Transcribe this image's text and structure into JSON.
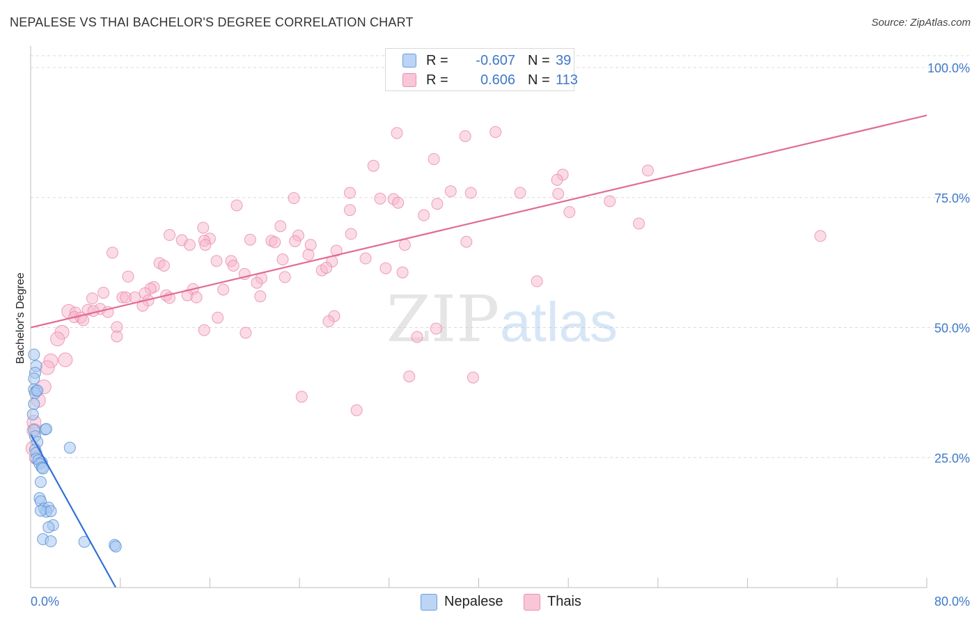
{
  "header": {
    "title": "NEPALESE VS THAI BACHELOR'S DEGREE CORRELATION CHART",
    "source": "Source: ZipAtlas.com"
  },
  "legend": {
    "r_label": "R =",
    "n_label": "N =",
    "rows": [
      {
        "name": "Nepalese",
        "r": "-0.607",
        "n": "39"
      },
      {
        "name": "Thais",
        "r": "0.606",
        "n": "113"
      }
    ]
  },
  "bottom_legend": {
    "nepalese": "Nepalese",
    "thais": "Thais"
  },
  "watermark": {
    "zip": "ZIP",
    "atlas": "atlas"
  },
  "colors": {
    "nepalese_fill": "#a9c8f0",
    "nepalese_stroke": "#5b8fd6",
    "nepalese_line": "#2f6fd6",
    "thais_fill": "#f7b8cd",
    "thais_stroke": "#e889a8",
    "thais_line": "#e26a98",
    "tick": "#3f78c8",
    "grid": "#d9d9d9"
  },
  "chart_data": {
    "type": "scatter",
    "title": "NEPALESE VS THAI BACHELOR'S DEGREE CORRELATION CHART",
    "xlabel": "",
    "ylabel": "Bachelor's Degree",
    "xlim": [
      0,
      80
    ],
    "ylim": [
      0,
      100
    ],
    "x_tick_labels": [
      "0.0%",
      "80.0%"
    ],
    "y_ticks": [
      25,
      50,
      75,
      100
    ],
    "y_tick_labels": [
      "25.0%",
      "50.0%",
      "75.0%",
      "100.0%"
    ],
    "grid": true,
    "series": [
      {
        "name": "Nepalese",
        "r": -0.607,
        "n": 39,
        "trend": {
          "x": [
            0.0,
            7.6
          ],
          "y": [
            29.5,
            0.0
          ]
        },
        "points": [
          [
            0.3,
            44.8
          ],
          [
            0.5,
            42.6
          ],
          [
            0.4,
            41.3
          ],
          [
            0.3,
            40.2
          ],
          [
            0.3,
            38.1
          ],
          [
            0.5,
            37.8
          ],
          [
            0.4,
            37.4
          ],
          [
            0.6,
            37.9
          ],
          [
            0.3,
            35.3
          ],
          [
            0.2,
            33.3
          ],
          [
            0.3,
            30.3
          ],
          [
            1.3,
            30.4
          ],
          [
            1.4,
            30.5
          ],
          [
            0.4,
            29.1
          ],
          [
            0.6,
            28.0
          ],
          [
            0.4,
            26.5
          ],
          [
            3.5,
            26.9
          ],
          [
            0.5,
            25.9
          ],
          [
            0.5,
            24.8
          ],
          [
            0.7,
            24.5
          ],
          [
            1.0,
            24.1
          ],
          [
            0.8,
            23.8
          ],
          [
            1.0,
            23.1
          ],
          [
            1.1,
            22.9
          ],
          [
            0.9,
            20.3
          ],
          [
            0.8,
            17.2
          ],
          [
            0.9,
            16.6
          ],
          [
            1.2,
            15.2
          ],
          [
            1.6,
            15.4
          ],
          [
            1.4,
            14.6
          ],
          [
            1.8,
            14.7
          ],
          [
            2.0,
            12.0
          ],
          [
            1.6,
            11.6
          ],
          [
            1.1,
            9.3
          ],
          [
            1.8,
            8.9
          ],
          [
            4.8,
            8.8
          ],
          [
            7.5,
            8.2
          ],
          [
            7.6,
            7.9
          ],
          [
            0.9,
            14.8
          ]
        ]
      },
      {
        "name": "Thais",
        "r": 0.606,
        "n": 113,
        "trend": {
          "x": [
            0.0,
            80.0
          ],
          "y": [
            50.0,
            90.8
          ]
        },
        "points": [
          [
            32.7,
            87.4
          ],
          [
            41.5,
            87.6
          ],
          [
            38.8,
            86.8
          ],
          [
            36.0,
            82.4
          ],
          [
            30.6,
            81.1
          ],
          [
            55.1,
            80.2
          ],
          [
            47.5,
            79.4
          ],
          [
            47.0,
            78.4
          ],
          [
            28.5,
            75.9
          ],
          [
            37.5,
            76.2
          ],
          [
            39.3,
            75.9
          ],
          [
            43.7,
            75.9
          ],
          [
            47.1,
            75.7
          ],
          [
            23.5,
            74.9
          ],
          [
            31.2,
            74.8
          ],
          [
            32.4,
            74.7
          ],
          [
            32.8,
            74.0
          ],
          [
            36.3,
            73.8
          ],
          [
            51.7,
            74.3
          ],
          [
            18.4,
            73.5
          ],
          [
            28.5,
            72.6
          ],
          [
            48.1,
            72.2
          ],
          [
            35.1,
            71.6
          ],
          [
            54.3,
            70.0
          ],
          [
            70.5,
            67.6
          ],
          [
            15.4,
            69.2
          ],
          [
            22.3,
            69.5
          ],
          [
            12.4,
            67.8
          ],
          [
            23.9,
            67.7
          ],
          [
            28.6,
            68.0
          ],
          [
            16.0,
            67.1
          ],
          [
            13.5,
            66.8
          ],
          [
            15.5,
            66.7
          ],
          [
            19.6,
            66.9
          ],
          [
            21.5,
            66.7
          ],
          [
            21.8,
            66.4
          ],
          [
            23.6,
            66.6
          ],
          [
            14.2,
            65.9
          ],
          [
            15.6,
            65.9
          ],
          [
            25.0,
            65.9
          ],
          [
            33.4,
            65.9
          ],
          [
            38.9,
            66.5
          ],
          [
            27.3,
            64.8
          ],
          [
            7.3,
            64.4
          ],
          [
            24.8,
            64.0
          ],
          [
            26.9,
            62.7
          ],
          [
            22.5,
            63.1
          ],
          [
            16.6,
            62.8
          ],
          [
            17.9,
            62.8
          ],
          [
            18.1,
            61.9
          ],
          [
            29.9,
            63.3
          ],
          [
            11.5,
            62.4
          ],
          [
            11.9,
            61.9
          ],
          [
            26.0,
            61.0
          ],
          [
            31.7,
            61.4
          ],
          [
            26.4,
            61.5
          ],
          [
            19.1,
            60.3
          ],
          [
            33.2,
            60.6
          ],
          [
            8.7,
            59.8
          ],
          [
            20.6,
            59.5
          ],
          [
            22.7,
            59.7
          ],
          [
            20.2,
            58.6
          ],
          [
            11.0,
            57.8
          ],
          [
            10.7,
            57.5
          ],
          [
            45.2,
            58.9
          ],
          [
            17.2,
            57.3
          ],
          [
            14.5,
            57.4
          ],
          [
            6.5,
            56.7
          ],
          [
            10.2,
            56.6
          ],
          [
            12.1,
            56.2
          ],
          [
            14.0,
            56.2
          ],
          [
            8.2,
            55.8
          ],
          [
            8.5,
            55.8
          ],
          [
            9.3,
            55.8
          ],
          [
            5.5,
            55.6
          ],
          [
            12.4,
            55.7
          ],
          [
            14.8,
            55.8
          ],
          [
            20.5,
            56.0
          ],
          [
            10.5,
            55.2
          ],
          [
            10.0,
            54.2
          ],
          [
            6.2,
            53.6
          ],
          [
            5.1,
            53.4
          ],
          [
            3.4,
            53.1
          ],
          [
            5.6,
            53.2
          ],
          [
            4.0,
            52.9
          ],
          [
            6.9,
            53.0
          ],
          [
            3.9,
            52.0
          ],
          [
            4.5,
            51.9
          ],
          [
            4.7,
            51.4
          ],
          [
            16.7,
            51.9
          ],
          [
            27.1,
            52.2
          ],
          [
            26.6,
            51.2
          ],
          [
            7.7,
            50.1
          ],
          [
            15.5,
            49.5
          ],
          [
            19.2,
            49.0
          ],
          [
            36.2,
            49.8
          ],
          [
            34.5,
            48.2
          ],
          [
            2.8,
            49.1
          ],
          [
            7.7,
            48.3
          ],
          [
            2.4,
            47.8
          ],
          [
            3.1,
            43.8
          ],
          [
            1.8,
            43.6
          ],
          [
            1.5,
            42.3
          ],
          [
            33.8,
            40.6
          ],
          [
            39.5,
            40.4
          ],
          [
            1.2,
            38.6
          ],
          [
            24.2,
            36.7
          ],
          [
            0.7,
            36.0
          ],
          [
            29.1,
            34.1
          ],
          [
            0.3,
            31.8
          ],
          [
            0.3,
            30.2
          ],
          [
            0.2,
            26.8
          ],
          [
            0.5,
            25.0
          ]
        ]
      }
    ]
  }
}
